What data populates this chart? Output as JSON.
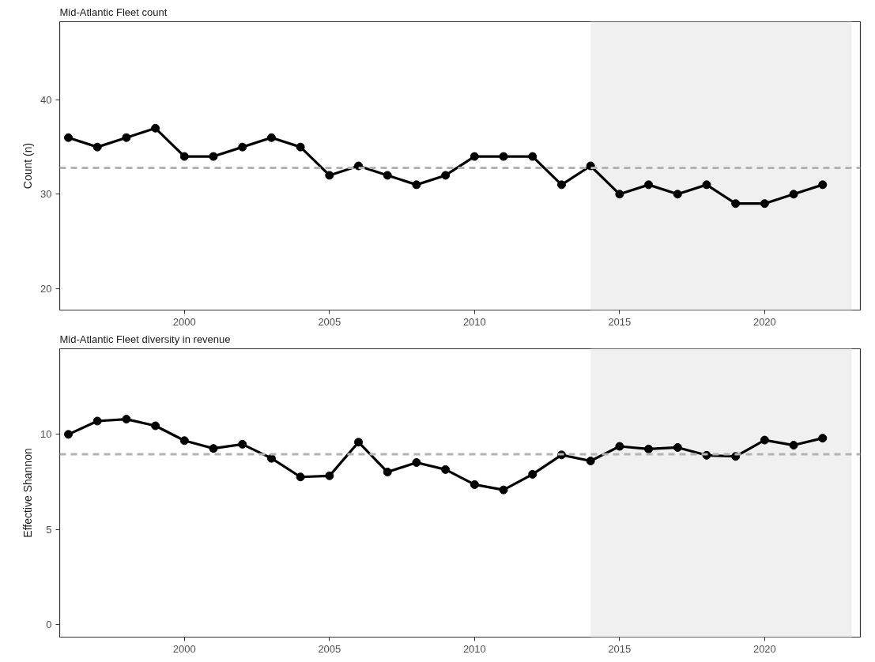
{
  "chart_data": [
    {
      "type": "line",
      "title": "Mid-Atlantic Fleet count",
      "ylabel": "Count (n)",
      "x": [
        1996,
        1997,
        1998,
        1999,
        2000,
        2001,
        2002,
        2003,
        2004,
        2005,
        2006,
        2007,
        2008,
        2009,
        2010,
        2011,
        2012,
        2013,
        2014,
        2015,
        2016,
        2017,
        2018,
        2019,
        2020,
        2021,
        2022
      ],
      "values": [
        36,
        35,
        36,
        37,
        34,
        34,
        35,
        36,
        35,
        32,
        33,
        32,
        31,
        32,
        34,
        34,
        34,
        31,
        33,
        30,
        31,
        30,
        31,
        29,
        29,
        30,
        31
      ],
      "color": "#000000",
      "marker": "circle",
      "line_style": "solid",
      "grid": false,
      "xlim": [
        1995.7,
        2023.3
      ],
      "ylim": [
        17.7,
        48.3
      ],
      "xticks": [
        2000,
        2005,
        2010,
        2015,
        2020
      ],
      "yticks": [
        20,
        30,
        40
      ],
      "ref_lines": [
        {
          "axis": "y",
          "value": 32.8,
          "color": "#b3b3b3",
          "line_style": "dashed"
        }
      ],
      "bands": [
        {
          "axis": "x",
          "from": 2014,
          "to": 2023,
          "color": "#f0f0f0"
        }
      ]
    },
    {
      "type": "line",
      "title": "Mid-Atlantic Fleet diversity in revenue",
      "ylabel": "Effective Shannon",
      "x": [
        1996,
        1997,
        1998,
        1999,
        2000,
        2001,
        2002,
        2003,
        2004,
        2005,
        2006,
        2007,
        2008,
        2009,
        2010,
        2011,
        2012,
        2013,
        2014,
        2015,
        2016,
        2017,
        2018,
        2019,
        2020,
        2021,
        2022
      ],
      "values": [
        10.0,
        10.7,
        10.8,
        10.45,
        9.67,
        9.26,
        9.48,
        8.74,
        7.76,
        7.82,
        9.59,
        8.02,
        8.52,
        8.15,
        7.36,
        7.08,
        7.9,
        8.92,
        8.6,
        9.37,
        9.23,
        9.31,
        8.9,
        8.84,
        9.7,
        9.43,
        9.8
      ],
      "color": "#000000",
      "marker": "circle",
      "line_style": "solid",
      "grid": false,
      "xlim": [
        1995.7,
        2023.3
      ],
      "ylim": [
        -0.66,
        14.5
      ],
      "xticks": [
        2000,
        2005,
        2010,
        2015,
        2020
      ],
      "yticks": [
        0,
        5,
        10
      ],
      "ref_lines": [
        {
          "axis": "y",
          "value": 8.96,
          "color": "#b3b3b3",
          "line_style": "dashed"
        }
      ],
      "bands": [
        {
          "axis": "x",
          "from": 2014,
          "to": 2023,
          "color": "#f0f0f0"
        }
      ]
    }
  ]
}
